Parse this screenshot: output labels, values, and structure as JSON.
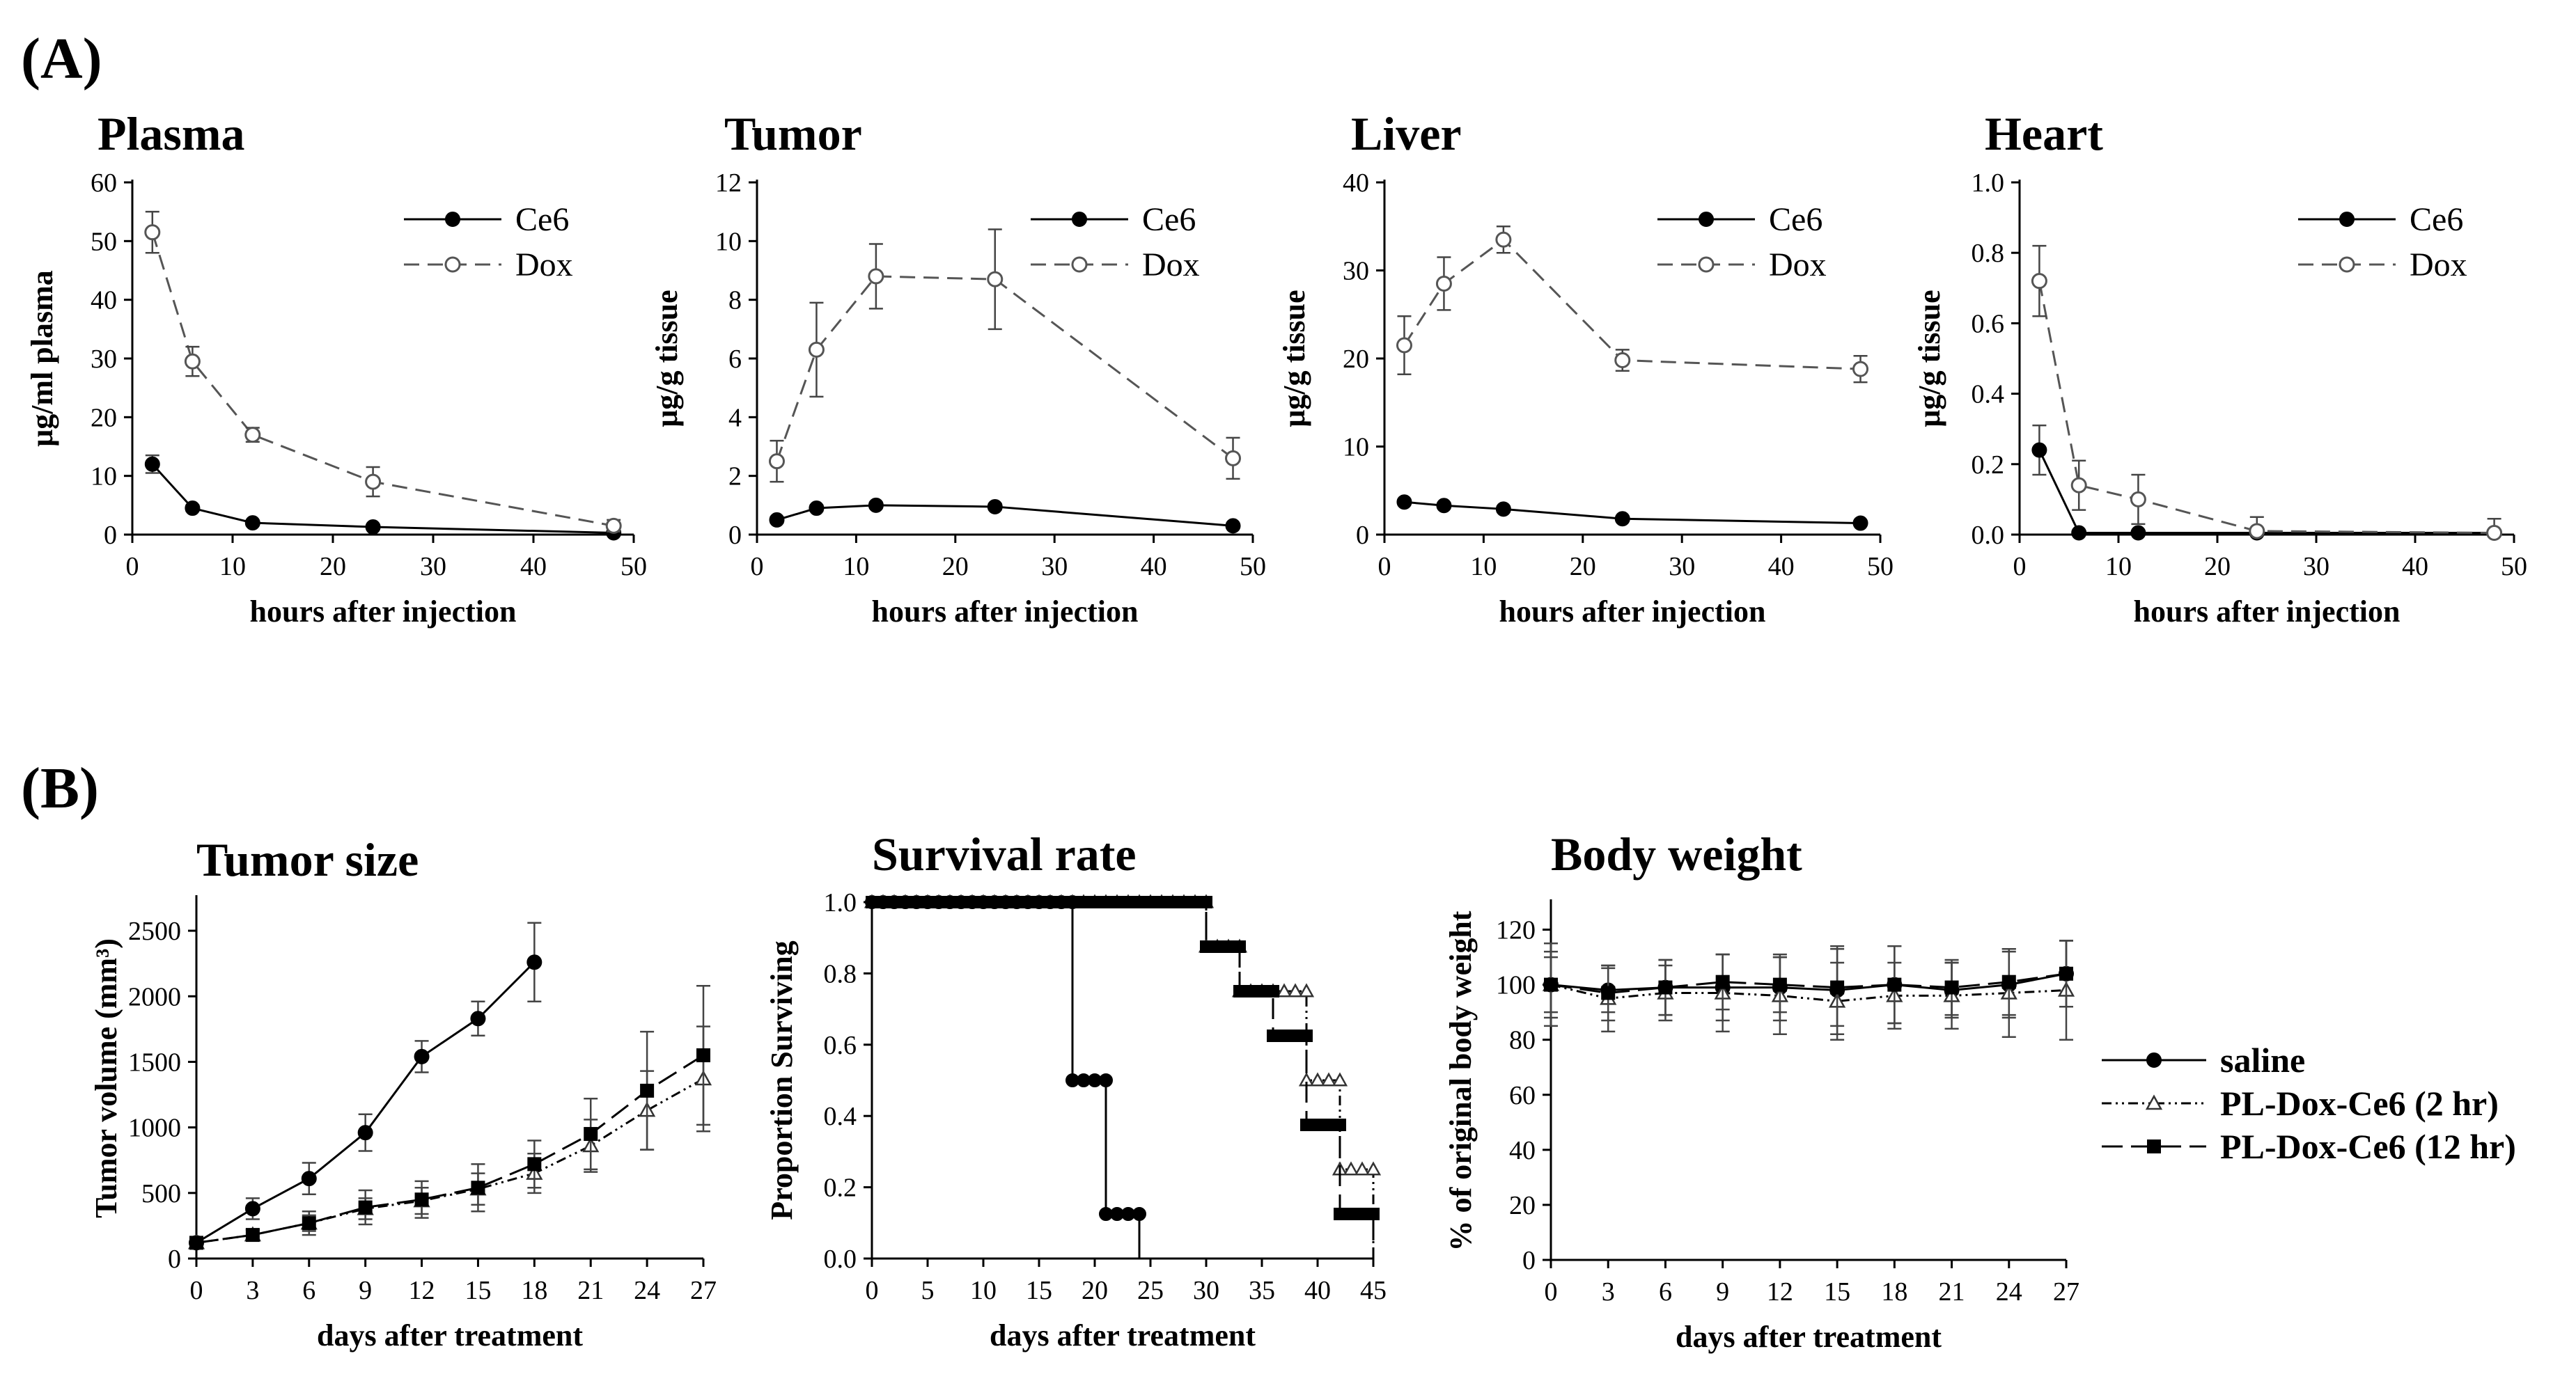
{
  "figure": {
    "label_a": "(A)",
    "label_b": "(B)"
  },
  "chart_data": [
    {
      "id": "plasma",
      "type": "line",
      "title": "Plasma",
      "xlabel": "hours after injection",
      "ylabel": "μg/ml plasma",
      "xlim": [
        0,
        50
      ],
      "ylim": [
        0,
        60
      ],
      "xticks": [
        0,
        10,
        20,
        30,
        40,
        50
      ],
      "yticks": [
        0,
        10,
        20,
        30,
        40,
        50,
        60
      ],
      "x": [
        2,
        6,
        12,
        24,
        48
      ],
      "series": [
        {
          "name": "Ce6",
          "marker": "filled-circle",
          "dash": "solid",
          "values": [
            12,
            4.5,
            2,
            1.3,
            0.3
          ],
          "errors": [
            1.5,
            0.5,
            0.4,
            0.3,
            0.2
          ]
        },
        {
          "name": "Dox",
          "marker": "open-circle",
          "dash": "dashed",
          "values": [
            51.5,
            29.5,
            17,
            9,
            1.5
          ],
          "errors": [
            3.5,
            2.5,
            1.2,
            2.5,
            1
          ]
        }
      ]
    },
    {
      "id": "tumor",
      "type": "line",
      "title": "Tumor",
      "xlabel": "hours after injection",
      "ylabel": "μg/g tissue",
      "xlim": [
        0,
        50
      ],
      "ylim": [
        0,
        12
      ],
      "xticks": [
        0,
        10,
        20,
        30,
        40,
        50
      ],
      "yticks": [
        0,
        2,
        4,
        6,
        8,
        10,
        12
      ],
      "x": [
        2,
        6,
        12,
        24,
        48
      ],
      "series": [
        {
          "name": "Ce6",
          "marker": "filled-circle",
          "dash": "solid",
          "values": [
            0.5,
            0.9,
            1.0,
            0.95,
            0.3
          ],
          "errors": [
            0.1,
            0.1,
            0.1,
            0.1,
            0.05
          ]
        },
        {
          "name": "Dox",
          "marker": "open-circle",
          "dash": "dashed",
          "values": [
            2.5,
            6.3,
            8.8,
            8.7,
            2.6
          ],
          "errors": [
            0.7,
            1.6,
            1.1,
            1.7,
            0.7
          ]
        }
      ]
    },
    {
      "id": "liver",
      "type": "line",
      "title": "Liver",
      "xlabel": "hours after injection",
      "ylabel": "μg/g tissue",
      "xlim": [
        0,
        50
      ],
      "ylim": [
        0,
        40
      ],
      "xticks": [
        0,
        10,
        20,
        30,
        40,
        50
      ],
      "yticks": [
        0,
        10,
        20,
        30,
        40
      ],
      "x": [
        2,
        6,
        12,
        24,
        48
      ],
      "series": [
        {
          "name": "Ce6",
          "marker": "filled-circle",
          "dash": "solid",
          "values": [
            3.7,
            3.3,
            2.9,
            1.8,
            1.3
          ],
          "errors": [
            0.3,
            0.3,
            0.3,
            0.2,
            0.2
          ]
        },
        {
          "name": "Dox",
          "marker": "open-circle",
          "dash": "dashed",
          "values": [
            21.5,
            28.5,
            33.5,
            19.8,
            18.8
          ],
          "errors": [
            3.3,
            3,
            1.5,
            1.2,
            1.5
          ]
        }
      ]
    },
    {
      "id": "heart",
      "type": "line",
      "title": "Heart",
      "xlabel": "hours after injection",
      "ylabel": "μg/g tissue",
      "xlim": [
        0,
        50
      ],
      "ylim": [
        0,
        1.0
      ],
      "xticks": [
        0,
        10,
        20,
        30,
        40,
        50
      ],
      "yticks": [
        0.0,
        0.2,
        0.4,
        0.6,
        0.8,
        1.0
      ],
      "ytick_labels": [
        "0.0",
        "0.2",
        "0.4",
        "0.6",
        "0.8",
        "1.0"
      ],
      "x": [
        2,
        6,
        12,
        24,
        48
      ],
      "series": [
        {
          "name": "Ce6",
          "marker": "filled-circle",
          "dash": "solid",
          "values": [
            0.24,
            0.005,
            0.005,
            0.005,
            0.005
          ],
          "errors": [
            0.07,
            0.005,
            0.005,
            0.005,
            0.005
          ]
        },
        {
          "name": "Dox",
          "marker": "open-circle",
          "dash": "dashed",
          "values": [
            0.72,
            0.14,
            0.1,
            0.01,
            0.005
          ],
          "errors": [
            0.1,
            0.07,
            0.07,
            0.04,
            0.04
          ]
        }
      ]
    },
    {
      "id": "tumor_size",
      "type": "line",
      "title": "Tumor size",
      "xlabel": "days after treatment",
      "ylabel": "Tumor volume (mm³)",
      "xlim": [
        0,
        27
      ],
      "ylim": [
        0,
        2750
      ],
      "xticks": [
        0,
        3,
        6,
        9,
        12,
        15,
        18,
        21,
        24,
        27
      ],
      "yticks": [
        0,
        500,
        1000,
        1500,
        2000,
        2500
      ],
      "series": [
        {
          "name": "saline",
          "marker": "filled-circle",
          "dash": "solid",
          "x": [
            0,
            3,
            6,
            9,
            12,
            15,
            18
          ],
          "values": [
            120,
            380,
            610,
            960,
            1540,
            1830,
            2260
          ],
          "errors": [
            30,
            80,
            120,
            140,
            120,
            130,
            300
          ]
        },
        {
          "name": "PL-Dox-Ce6 (2 hr)",
          "marker": "open-triangle",
          "dash": "dashdotdot",
          "x": [
            0,
            3,
            6,
            9,
            12,
            15,
            18,
            21,
            24,
            27
          ],
          "values": [
            120,
            180,
            270,
            380,
            440,
            530,
            650,
            860,
            1130,
            1370
          ],
          "errors": [
            30,
            40,
            60,
            80,
            100,
            120,
            150,
            200,
            300,
            400
          ]
        },
        {
          "name": "PL-Dox-Ce6 (12 hr)",
          "marker": "filled-square",
          "dash": "longdash",
          "x": [
            0,
            3,
            6,
            9,
            12,
            15,
            18,
            21,
            24,
            27
          ],
          "values": [
            120,
            180,
            270,
            390,
            450,
            540,
            720,
            950,
            1280,
            1550
          ],
          "errors": [
            30,
            40,
            90,
            130,
            140,
            180,
            180,
            270,
            450,
            530
          ]
        }
      ]
    },
    {
      "id": "survival",
      "type": "line",
      "title": "Survival rate",
      "xlabel": "days after treatment",
      "ylabel": "Proportion Surviving",
      "xlim": [
        0,
        45
      ],
      "ylim": [
        0,
        1.0
      ],
      "xticks": [
        0,
        5,
        10,
        15,
        20,
        25,
        30,
        35,
        40,
        45
      ],
      "yticks": [
        0.0,
        0.2,
        0.4,
        0.6,
        0.8,
        1.0
      ],
      "ytick_labels": [
        "0.0",
        "0.2",
        "0.4",
        "0.6",
        "0.8",
        "1.0"
      ],
      "series": [
        {
          "name": "saline",
          "marker": "filled-circle",
          "dash": "solid",
          "steps": [
            [
              0,
              1.0
            ],
            [
              18,
              0.5
            ],
            [
              21,
              0.125
            ],
            [
              24,
              0.0
            ]
          ]
        },
        {
          "name": "PL-Dox-Ce6 (2 hr)",
          "marker": "open-triangle",
          "dash": "dashdotdot",
          "steps": [
            [
              0,
              1.0
            ],
            [
              30,
              0.875
            ],
            [
              33,
              0.75
            ],
            [
              39,
              0.5
            ],
            [
              42,
              0.25
            ],
            [
              45,
              0.0
            ]
          ]
        },
        {
          "name": "PL-Dox-Ce6 (12 hr)",
          "marker": "filled-square",
          "dash": "longdash",
          "steps": [
            [
              0,
              1.0
            ],
            [
              30,
              0.875
            ],
            [
              33,
              0.75
            ],
            [
              36,
              0.625
            ],
            [
              39,
              0.375
            ],
            [
              42,
              0.125
            ],
            [
              45,
              0.0
            ]
          ]
        }
      ]
    },
    {
      "id": "body_weight",
      "type": "line",
      "title": "Body weight",
      "xlabel": "days after treatment",
      "ylabel": "% of original body weight",
      "xlim": [
        0,
        27
      ],
      "ylim": [
        0,
        130
      ],
      "xticks": [
        0,
        3,
        6,
        9,
        12,
        15,
        18,
        21,
        24,
        27
      ],
      "yticks": [
        0,
        20,
        40,
        60,
        80,
        100,
        120
      ],
      "x": [
        0,
        3,
        6,
        9,
        12,
        15,
        18,
        21,
        24,
        27
      ],
      "series": [
        {
          "name": "saline",
          "marker": "filled-circle",
          "dash": "solid",
          "values": [
            100,
            98,
            99,
            99,
            99,
            98,
            100,
            98,
            100,
            104
          ],
          "errors": [
            10,
            8,
            10,
            12,
            12,
            16,
            14,
            10,
            12,
            12
          ]
        },
        {
          "name": "PL-Dox-Ce6 (2 hr)",
          "marker": "open-triangle",
          "dash": "dashdotdot",
          "values": [
            100,
            95,
            97,
            97,
            96,
            94,
            96,
            96,
            97,
            98
          ],
          "errors": [
            15,
            12,
            10,
            14,
            14,
            14,
            12,
            12,
            16,
            18
          ]
        },
        {
          "name": "PL-Dox-Ce6 (12 hr)",
          "marker": "filled-square",
          "dash": "longdash",
          "values": [
            100,
            97,
            99,
            101,
            100,
            99,
            100,
            99,
            101,
            104
          ],
          "errors": [
            12,
            10,
            10,
            10,
            10,
            14,
            14,
            10,
            12,
            12
          ]
        }
      ]
    }
  ]
}
